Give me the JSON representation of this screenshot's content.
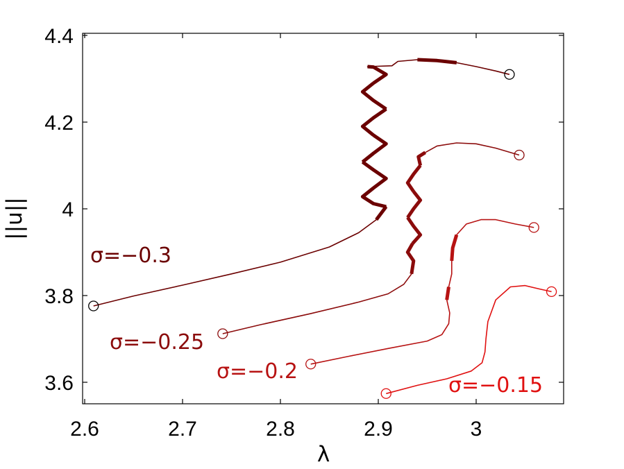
{
  "chart_data": {
    "type": "line",
    "title": "",
    "xlabel": "λ",
    "ylabel": "||u||",
    "xlim": [
      2.6,
      3.09
    ],
    "ylim": [
      3.55,
      4.4
    ],
    "xticks": [
      2.6,
      2.7,
      2.8,
      2.9,
      3.0
    ],
    "xtick_labels": [
      "2.6",
      "2.7",
      "2.8",
      "2.9",
      "3"
    ],
    "yticks": [
      3.6,
      3.8,
      4.0,
      4.2,
      4.4
    ],
    "ytick_labels": [
      "3.6",
      "3.8",
      "4",
      "4.2",
      "4.4"
    ],
    "grid": false,
    "legend": "none",
    "series": [
      {
        "name": "σ=−0.3",
        "color": "#6b0000",
        "start_marker": [
          2.609,
          3.776
        ],
        "end_marker": [
          3.034,
          4.31
        ],
        "points": [
          [
            2.609,
            3.776
          ],
          [
            2.65,
            3.799
          ],
          [
            2.7,
            3.824
          ],
          [
            2.75,
            3.85
          ],
          [
            2.8,
            3.877
          ],
          [
            2.85,
            3.912
          ],
          [
            2.88,
            3.945
          ],
          [
            2.898,
            3.975
          ],
          [
            2.908,
            4.005
          ],
          [
            2.895,
            4.012
          ],
          [
            2.884,
            4.028
          ],
          [
            2.895,
            4.048
          ],
          [
            2.908,
            4.07
          ],
          [
            2.895,
            4.09
          ],
          [
            2.884,
            4.108
          ],
          [
            2.895,
            4.128
          ],
          [
            2.908,
            4.15
          ],
          [
            2.895,
            4.17
          ],
          [
            2.884,
            4.19
          ],
          [
            2.895,
            4.21
          ],
          [
            2.908,
            4.23
          ],
          [
            2.895,
            4.25
          ],
          [
            2.884,
            4.27
          ],
          [
            2.895,
            4.29
          ],
          [
            2.908,
            4.31
          ],
          [
            2.895,
            4.327
          ],
          [
            2.889,
            4.328
          ],
          [
            2.914,
            4.33
          ],
          [
            2.92,
            4.34
          ],
          [
            2.94,
            4.344
          ],
          [
            2.96,
            4.342
          ],
          [
            2.98,
            4.337
          ],
          [
            3.0,
            4.328
          ],
          [
            3.02,
            4.318
          ],
          [
            3.034,
            4.31
          ]
        ],
        "bold_segments": [
          [
            7,
            8
          ],
          [
            8,
            11
          ],
          [
            11,
            14
          ],
          [
            14,
            17
          ],
          [
            17,
            20
          ],
          [
            20,
            23
          ],
          [
            23,
            26
          ],
          [
            29,
            31
          ]
        ]
      },
      {
        "name": "σ=−0.25",
        "color": "#8b0b0b",
        "start_marker": [
          2.741,
          3.712
        ],
        "end_marker": [
          3.044,
          4.124
        ],
        "points": [
          [
            2.741,
            3.712
          ],
          [
            2.78,
            3.733
          ],
          [
            2.83,
            3.758
          ],
          [
            2.88,
            3.785
          ],
          [
            2.91,
            3.804
          ],
          [
            2.926,
            3.826
          ],
          [
            2.934,
            3.85
          ],
          [
            2.936,
            3.88
          ],
          [
            2.93,
            3.9
          ],
          [
            2.935,
            3.92
          ],
          [
            2.943,
            3.94
          ],
          [
            2.936,
            3.96
          ],
          [
            2.93,
            3.98
          ],
          [
            2.936,
            4.0
          ],
          [
            2.943,
            4.02
          ],
          [
            2.936,
            4.04
          ],
          [
            2.93,
            4.06
          ],
          [
            2.936,
            4.08
          ],
          [
            2.943,
            4.1
          ],
          [
            2.941,
            4.12
          ],
          [
            2.948,
            4.13
          ],
          [
            2.96,
            4.145
          ],
          [
            2.98,
            4.152
          ],
          [
            3.0,
            4.15
          ],
          [
            3.02,
            4.14
          ],
          [
            3.044,
            4.124
          ]
        ],
        "bold_segments": [
          [
            6,
            9
          ],
          [
            9,
            12
          ],
          [
            12,
            15
          ],
          [
            15,
            18
          ],
          [
            18,
            20
          ]
        ]
      },
      {
        "name": "σ=−0.2",
        "color": "#b71212",
        "start_marker": [
          2.831,
          3.642
        ],
        "end_marker": [
          3.059,
          3.957
        ],
        "points": [
          [
            2.831,
            3.642
          ],
          [
            2.87,
            3.66
          ],
          [
            2.91,
            3.678
          ],
          [
            2.95,
            3.695
          ],
          [
            2.965,
            3.71
          ],
          [
            2.972,
            3.735
          ],
          [
            2.973,
            3.76
          ],
          [
            2.97,
            3.79
          ],
          [
            2.972,
            3.82
          ],
          [
            2.975,
            3.85
          ],
          [
            2.975,
            3.88
          ],
          [
            2.976,
            3.91
          ],
          [
            2.98,
            3.94
          ],
          [
            2.99,
            3.965
          ],
          [
            3.005,
            3.975
          ],
          [
            3.02,
            3.975
          ],
          [
            3.04,
            3.965
          ],
          [
            3.059,
            3.957
          ]
        ],
        "bold_segments": [
          [
            7,
            8
          ],
          [
            10,
            12
          ]
        ]
      },
      {
        "name": "σ=−0.15",
        "color": "#e01010",
        "start_marker": [
          2.908,
          3.574
        ],
        "end_marker": [
          3.077,
          3.809
        ],
        "points": [
          [
            2.908,
            3.574
          ],
          [
            2.94,
            3.593
          ],
          [
            2.97,
            3.608
          ],
          [
            2.995,
            3.626
          ],
          [
            3.006,
            3.645
          ],
          [
            3.009,
            3.67
          ],
          [
            3.01,
            3.7
          ],
          [
            3.012,
            3.74
          ],
          [
            3.02,
            3.79
          ],
          [
            3.035,
            3.82
          ],
          [
            3.05,
            3.823
          ],
          [
            3.065,
            3.815
          ],
          [
            3.077,
            3.809
          ]
        ],
        "bold_segments": []
      }
    ],
    "annotations": [
      {
        "text": "σ=−0.3",
        "color": "#6b0000",
        "anchor": "series-0"
      },
      {
        "text": "σ=−0.25",
        "color": "#8b0b0b",
        "anchor": "series-1"
      },
      {
        "text": "σ=−0.2",
        "color": "#b71212",
        "anchor": "series-2"
      },
      {
        "text": "σ=−0.15",
        "color": "#e01010",
        "anchor": "series-3"
      }
    ]
  }
}
